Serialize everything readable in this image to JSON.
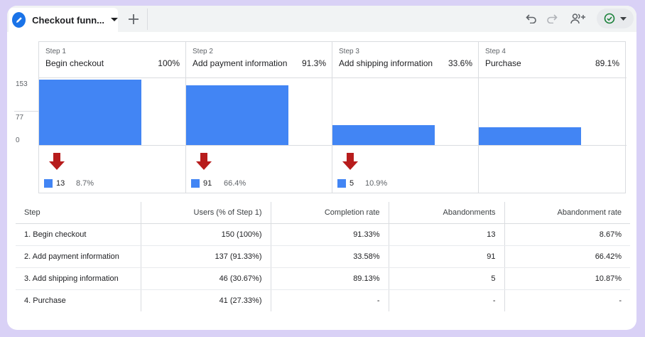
{
  "tab": {
    "title": "Checkout funn...",
    "add_label": "+"
  },
  "toolbar": {
    "icons": [
      "undo-icon",
      "redo-icon",
      "share-users-icon",
      "check-circle-icon",
      "chevron-down-icon"
    ]
  },
  "colors": {
    "bar": "#4285f4",
    "drop_arrow": "#b71c1c",
    "accent": "#1a73e8",
    "status_ok": "#188038"
  },
  "chart_data": {
    "type": "bar",
    "y_ticks": [
      "153",
      "77",
      "0"
    ],
    "ylim": [
      0,
      153
    ],
    "steps": [
      {
        "label": "Step 1",
        "name": "Begin checkout",
        "pct": "100%",
        "value": 150,
        "drop_count": "13",
        "drop_rate": "8.7%"
      },
      {
        "label": "Step 2",
        "name": "Add payment information",
        "pct": "91.3%",
        "value": 137,
        "drop_count": "91",
        "drop_rate": "66.4%"
      },
      {
        "label": "Step 3",
        "name": "Add shipping information",
        "pct": "33.6%",
        "value": 46,
        "drop_count": "5",
        "drop_rate": "10.9%"
      },
      {
        "label": "Step 4",
        "name": "Purchase",
        "pct": "89.1%",
        "value": 41,
        "drop_count": "",
        "drop_rate": ""
      }
    ]
  },
  "table": {
    "headers": [
      "Step",
      "Users (% of Step 1)",
      "Completion rate",
      "Abandonments",
      "Abandonment rate"
    ],
    "rows": [
      [
        "1. Begin checkout",
        "150 (100%)",
        "91.33%",
        "13",
        "8.67%"
      ],
      [
        "2. Add payment information",
        "137 (91.33%)",
        "33.58%",
        "91",
        "66.42%"
      ],
      [
        "3. Add shipping information",
        "46 (30.67%)",
        "89.13%",
        "5",
        "10.87%"
      ],
      [
        "4. Purchase",
        "41 (27.33%)",
        "-",
        "-",
        "-"
      ]
    ]
  }
}
